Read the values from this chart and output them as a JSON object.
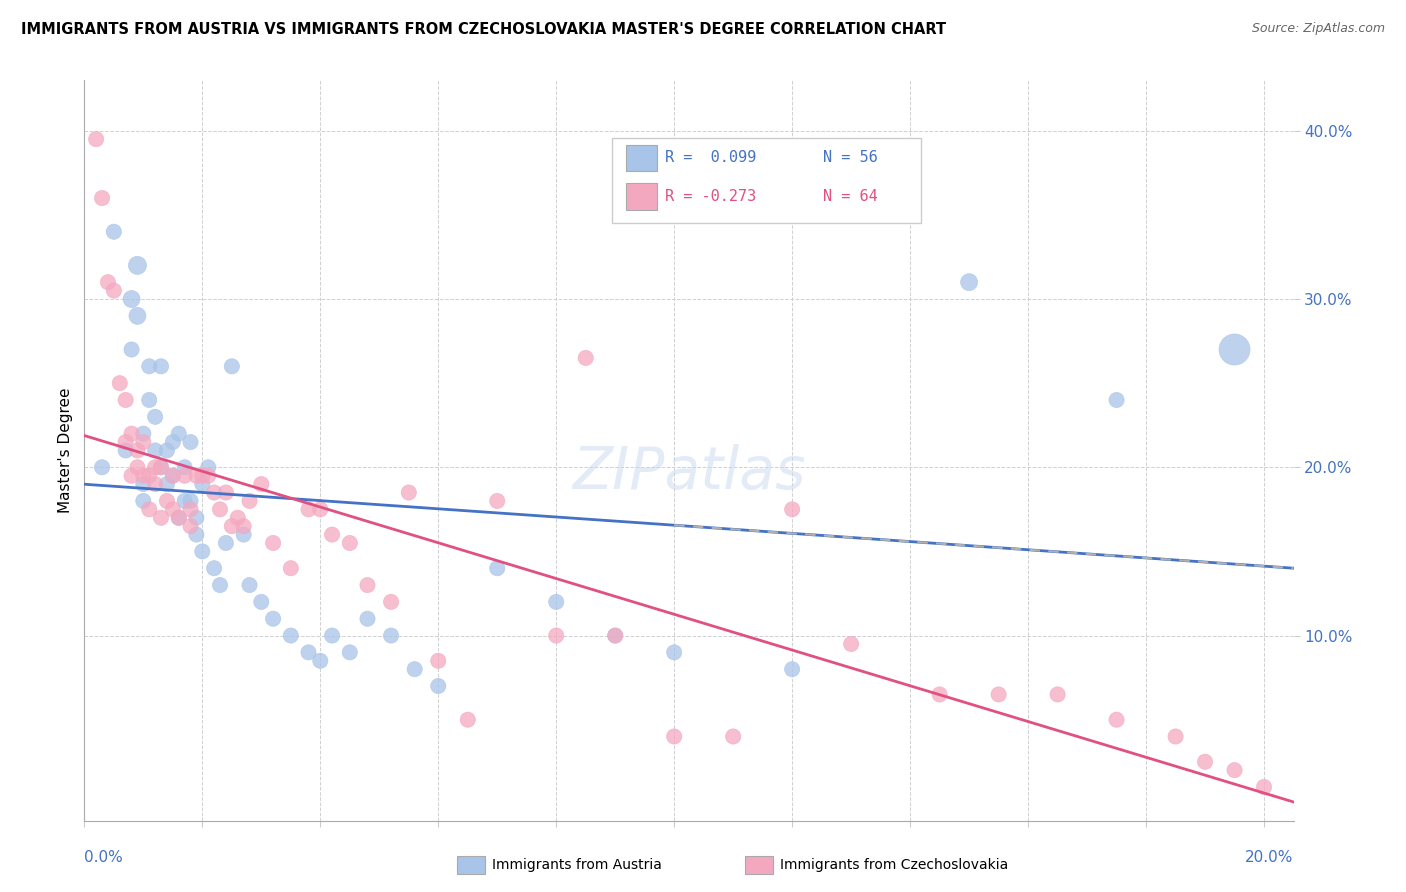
{
  "title": "IMMIGRANTS FROM AUSTRIA VS IMMIGRANTS FROM CZECHOSLOVAKIA MASTER'S DEGREE CORRELATION CHART",
  "source": "Source: ZipAtlas.com",
  "ylabel": "Master's Degree",
  "legend_R_austria": "R =  0.099",
  "legend_N_austria": "N = 56",
  "legend_R_czechoslovakia": "R = -0.273",
  "legend_N_czechoslovakia": "N = 64",
  "austria_color": "#a8c4e8",
  "czechoslovakia_color": "#f4a8c0",
  "austria_line_color": "#4472c4",
  "czechoslovakia_line_color": "#e05080",
  "dashed_line_color": "#b0b0b0",
  "xlim": [
    0.0,
    0.205
  ],
  "ylim": [
    -0.01,
    0.43
  ],
  "austria_x": [
    0.003,
    0.005,
    0.007,
    0.008,
    0.008,
    0.009,
    0.009,
    0.01,
    0.01,
    0.01,
    0.011,
    0.011,
    0.012,
    0.012,
    0.013,
    0.013,
    0.014,
    0.014,
    0.015,
    0.015,
    0.016,
    0.016,
    0.017,
    0.017,
    0.018,
    0.018,
    0.019,
    0.019,
    0.02,
    0.02,
    0.021,
    0.022,
    0.023,
    0.024,
    0.025,
    0.027,
    0.028,
    0.03,
    0.032,
    0.035,
    0.038,
    0.04,
    0.042,
    0.045,
    0.048,
    0.052,
    0.056,
    0.06,
    0.07,
    0.08,
    0.09,
    0.1,
    0.12,
    0.15,
    0.175,
    0.195
  ],
  "austria_y": [
    0.2,
    0.34,
    0.21,
    0.3,
    0.27,
    0.32,
    0.29,
    0.22,
    0.19,
    0.18,
    0.26,
    0.24,
    0.23,
    0.21,
    0.26,
    0.2,
    0.21,
    0.19,
    0.215,
    0.195,
    0.22,
    0.17,
    0.2,
    0.18,
    0.215,
    0.18,
    0.17,
    0.16,
    0.19,
    0.15,
    0.2,
    0.14,
    0.13,
    0.155,
    0.26,
    0.16,
    0.13,
    0.12,
    0.11,
    0.1,
    0.09,
    0.085,
    0.1,
    0.09,
    0.11,
    0.1,
    0.08,
    0.07,
    0.14,
    0.12,
    0.1,
    0.09,
    0.08,
    0.31,
    0.24,
    0.27
  ],
  "austria_sizes": [
    120,
    120,
    120,
    150,
    120,
    170,
    150,
    120,
    120,
    120,
    120,
    120,
    120,
    120,
    120,
    120,
    120,
    120,
    120,
    120,
    120,
    120,
    120,
    120,
    120,
    120,
    120,
    120,
    120,
    120,
    120,
    120,
    120,
    120,
    120,
    120,
    120,
    120,
    120,
    120,
    120,
    120,
    120,
    120,
    120,
    120,
    120,
    120,
    120,
    120,
    120,
    120,
    120,
    150,
    120,
    500
  ],
  "czechoslovakia_x": [
    0.002,
    0.003,
    0.004,
    0.005,
    0.006,
    0.007,
    0.007,
    0.008,
    0.008,
    0.009,
    0.009,
    0.01,
    0.01,
    0.011,
    0.011,
    0.012,
    0.012,
    0.013,
    0.013,
    0.014,
    0.015,
    0.015,
    0.016,
    0.017,
    0.018,
    0.018,
    0.019,
    0.02,
    0.021,
    0.022,
    0.023,
    0.024,
    0.025,
    0.026,
    0.027,
    0.028,
    0.03,
    0.032,
    0.035,
    0.038,
    0.04,
    0.042,
    0.045,
    0.048,
    0.052,
    0.055,
    0.06,
    0.065,
    0.07,
    0.08,
    0.085,
    0.09,
    0.1,
    0.11,
    0.12,
    0.13,
    0.145,
    0.155,
    0.165,
    0.175,
    0.185,
    0.19,
    0.195,
    0.2
  ],
  "czechoslovakia_y": [
    0.395,
    0.36,
    0.31,
    0.305,
    0.25,
    0.215,
    0.24,
    0.22,
    0.195,
    0.21,
    0.2,
    0.215,
    0.195,
    0.195,
    0.175,
    0.2,
    0.19,
    0.2,
    0.17,
    0.18,
    0.195,
    0.175,
    0.17,
    0.195,
    0.165,
    0.175,
    0.195,
    0.195,
    0.195,
    0.185,
    0.175,
    0.185,
    0.165,
    0.17,
    0.165,
    0.18,
    0.19,
    0.155,
    0.14,
    0.175,
    0.175,
    0.16,
    0.155,
    0.13,
    0.12,
    0.185,
    0.085,
    0.05,
    0.18,
    0.1,
    0.265,
    0.1,
    0.04,
    0.04,
    0.175,
    0.095,
    0.065,
    0.065,
    0.065,
    0.05,
    0.04,
    0.025,
    0.02,
    0.01
  ],
  "czechoslovakia_sizes": [
    120,
    120,
    120,
    120,
    120,
    120,
    120,
    120,
    120,
    120,
    120,
    120,
    120,
    120,
    120,
    120,
    120,
    120,
    120,
    120,
    120,
    120,
    120,
    120,
    120,
    120,
    120,
    120,
    120,
    120,
    120,
    120,
    120,
    120,
    120,
    120,
    120,
    120,
    120,
    120,
    120,
    120,
    120,
    120,
    120,
    120,
    120,
    120,
    120,
    120,
    120,
    120,
    120,
    120,
    120,
    120,
    120,
    120,
    120,
    120,
    120,
    120,
    120,
    120
  ]
}
